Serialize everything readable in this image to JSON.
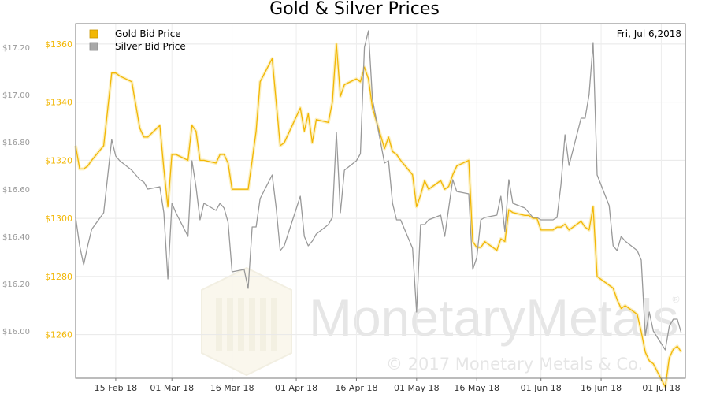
{
  "chart_data": {
    "type": "line",
    "title": "Gold & Silver Prices",
    "date_label": "Fri, Jul 6,2018",
    "x_range": [
      "2018-02-05",
      "2018-07-07"
    ],
    "x_tick_labels": [
      {
        "date": "2018-02-15",
        "label": "15 Feb 18"
      },
      {
        "date": "2018-03-01",
        "label": "01 Mar 18"
      },
      {
        "date": "2018-03-16",
        "label": "16 Mar 18"
      },
      {
        "date": "2018-04-01",
        "label": "01 Apr 18"
      },
      {
        "date": "2018-04-16",
        "label": "16 Apr 18"
      },
      {
        "date": "2018-05-01",
        "label": "01 May 18"
      },
      {
        "date": "2018-05-16",
        "label": "16 May 18"
      },
      {
        "date": "2018-06-01",
        "label": "01 Jun 18"
      },
      {
        "date": "2018-06-16",
        "label": "16 Jun 18"
      },
      {
        "date": "2018-07-01",
        "label": "01 Jul 18"
      }
    ],
    "gold_axis": {
      "range": [
        1245,
        1367
      ],
      "ticks": [
        1260,
        1280,
        1300,
        1320,
        1340,
        1360
      ],
      "tick_labels": [
        "$1260",
        "$1280",
        "$1300",
        "$1320",
        "$1340",
        "$1360"
      ],
      "color": "#f2b705"
    },
    "silver_axis": {
      "range": [
        15.8,
        17.3
      ],
      "ticks": [
        16.0,
        16.2,
        16.4,
        16.6,
        16.8,
        17.0,
        17.2
      ],
      "tick_labels": [
        "$16.00",
        "$16.20",
        "$16.40",
        "$16.60",
        "$16.80",
        "$17.00",
        "$17.20"
      ],
      "color": "#999999"
    },
    "grid": true,
    "legend_position": "top-left",
    "series": [
      {
        "name": "Gold Bid Price",
        "axis": "gold",
        "color": "#f2b705",
        "points": [
          [
            "2018-02-05",
            1325
          ],
          [
            "2018-02-06",
            1317
          ],
          [
            "2018-02-07",
            1317
          ],
          [
            "2018-02-08",
            1318
          ],
          [
            "2018-02-09",
            1320
          ],
          [
            "2018-02-12",
            1325
          ],
          [
            "2018-02-14",
            1350
          ],
          [
            "2018-02-15",
            1350
          ],
          [
            "2018-02-16",
            1349
          ],
          [
            "2018-02-19",
            1347
          ],
          [
            "2018-02-21",
            1331
          ],
          [
            "2018-02-22",
            1328
          ],
          [
            "2018-02-23",
            1328
          ],
          [
            "2018-02-26",
            1332
          ],
          [
            "2018-02-27",
            1317
          ],
          [
            "2018-02-28",
            1304
          ],
          [
            "2018-03-01",
            1322
          ],
          [
            "2018-03-02",
            1322
          ],
          [
            "2018-03-05",
            1320
          ],
          [
            "2018-03-06",
            1332
          ],
          [
            "2018-03-07",
            1330
          ],
          [
            "2018-03-08",
            1320
          ],
          [
            "2018-03-09",
            1320
          ],
          [
            "2018-03-12",
            1319
          ],
          [
            "2018-03-13",
            1322
          ],
          [
            "2018-03-14",
            1322
          ],
          [
            "2018-03-15",
            1319
          ],
          [
            "2018-03-16",
            1310
          ],
          [
            "2018-03-19",
            1310
          ],
          [
            "2018-03-20",
            1310
          ],
          [
            "2018-03-21",
            1320
          ],
          [
            "2018-03-22",
            1330
          ],
          [
            "2018-03-23",
            1347
          ],
          [
            "2018-03-26",
            1355
          ],
          [
            "2018-03-27",
            1340
          ],
          [
            "2018-03-28",
            1325
          ],
          [
            "2018-03-29",
            1326
          ],
          [
            "2018-04-02",
            1338
          ],
          [
            "2018-04-03",
            1330
          ],
          [
            "2018-04-04",
            1336
          ],
          [
            "2018-04-05",
            1326
          ],
          [
            "2018-04-06",
            1334
          ],
          [
            "2018-04-09",
            1333
          ],
          [
            "2018-04-10",
            1340
          ],
          [
            "2018-04-11",
            1360
          ],
          [
            "2018-04-12",
            1342
          ],
          [
            "2018-04-13",
            1346
          ],
          [
            "2018-04-16",
            1348
          ],
          [
            "2018-04-17",
            1347
          ],
          [
            "2018-04-18",
            1352
          ],
          [
            "2018-04-19",
            1348
          ],
          [
            "2018-04-20",
            1338
          ],
          [
            "2018-04-23",
            1324
          ],
          [
            "2018-04-24",
            1328
          ],
          [
            "2018-04-25",
            1323
          ],
          [
            "2018-04-26",
            1322
          ],
          [
            "2018-04-27",
            1320
          ],
          [
            "2018-04-30",
            1315
          ],
          [
            "2018-05-01",
            1304
          ],
          [
            "2018-05-02",
            1308
          ],
          [
            "2018-05-03",
            1313
          ],
          [
            "2018-05-04",
            1310
          ],
          [
            "2018-05-07",
            1313
          ],
          [
            "2018-05-08",
            1310
          ],
          [
            "2018-05-09",
            1311
          ],
          [
            "2018-05-10",
            1315
          ],
          [
            "2018-05-11",
            1318
          ],
          [
            "2018-05-14",
            1320
          ],
          [
            "2018-05-15",
            1292
          ],
          [
            "2018-05-16",
            1290
          ],
          [
            "2018-05-17",
            1290
          ],
          [
            "2018-05-18",
            1292
          ],
          [
            "2018-05-21",
            1289
          ],
          [
            "2018-05-22",
            1293
          ],
          [
            "2018-05-23",
            1292
          ],
          [
            "2018-05-24",
            1303
          ],
          [
            "2018-05-25",
            1302
          ],
          [
            "2018-05-28",
            1301
          ],
          [
            "2018-05-29",
            1301
          ],
          [
            "2018-05-30",
            1300
          ],
          [
            "2018-05-31",
            1300
          ],
          [
            "2018-06-01",
            1296
          ],
          [
            "2018-06-04",
            1296
          ],
          [
            "2018-06-05",
            1297
          ],
          [
            "2018-06-06",
            1297
          ],
          [
            "2018-06-07",
            1298
          ],
          [
            "2018-06-08",
            1296
          ],
          [
            "2018-06-11",
            1299
          ],
          [
            "2018-06-12",
            1297
          ],
          [
            "2018-06-13",
            1296
          ],
          [
            "2018-06-14",
            1304
          ],
          [
            "2018-06-15",
            1280
          ],
          [
            "2018-06-18",
            1277
          ],
          [
            "2018-06-19",
            1276
          ],
          [
            "2018-06-20",
            1272
          ],
          [
            "2018-06-21",
            1269
          ],
          [
            "2018-06-22",
            1270
          ],
          [
            "2018-06-25",
            1267
          ],
          [
            "2018-06-26",
            1261
          ],
          [
            "2018-06-27",
            1254
          ],
          [
            "2018-06-28",
            1251
          ],
          [
            "2018-06-29",
            1250
          ],
          [
            "2018-07-02",
            1242
          ],
          [
            "2018-07-03",
            1252
          ],
          [
            "2018-07-04",
            1255
          ],
          [
            "2018-07-05",
            1256
          ],
          [
            "2018-07-06",
            1254
          ]
        ]
      },
      {
        "name": "Silver Bid Price",
        "axis": "silver",
        "color": "#999999",
        "points": [
          [
            "2018-02-05",
            16.48
          ],
          [
            "2018-02-06",
            16.36
          ],
          [
            "2018-02-07",
            16.28
          ],
          [
            "2018-02-08",
            16.36
          ],
          [
            "2018-02-09",
            16.43
          ],
          [
            "2018-02-12",
            16.5
          ],
          [
            "2018-02-14",
            16.81
          ],
          [
            "2018-02-15",
            16.74
          ],
          [
            "2018-02-16",
            16.72
          ],
          [
            "2018-02-19",
            16.68
          ],
          [
            "2018-02-21",
            16.64
          ],
          [
            "2018-02-22",
            16.63
          ],
          [
            "2018-02-23",
            16.6
          ],
          [
            "2018-02-26",
            16.61
          ],
          [
            "2018-02-27",
            16.5
          ],
          [
            "2018-02-28",
            16.22
          ],
          [
            "2018-03-01",
            16.54
          ],
          [
            "2018-03-02",
            16.5
          ],
          [
            "2018-03-05",
            16.4
          ],
          [
            "2018-03-06",
            16.72
          ],
          [
            "2018-03-07",
            16.61
          ],
          [
            "2018-03-08",
            16.47
          ],
          [
            "2018-03-09",
            16.54
          ],
          [
            "2018-03-12",
            16.51
          ],
          [
            "2018-03-13",
            16.54
          ],
          [
            "2018-03-14",
            16.52
          ],
          [
            "2018-03-15",
            16.46
          ],
          [
            "2018-03-16",
            16.25
          ],
          [
            "2018-03-19",
            16.26
          ],
          [
            "2018-03-20",
            16.18
          ],
          [
            "2018-03-21",
            16.44
          ],
          [
            "2018-03-22",
            16.44
          ],
          [
            "2018-03-23",
            16.56
          ],
          [
            "2018-03-26",
            16.66
          ],
          [
            "2018-03-27",
            16.52
          ],
          [
            "2018-03-28",
            16.34
          ],
          [
            "2018-03-29",
            16.36
          ],
          [
            "2018-04-02",
            16.57
          ],
          [
            "2018-04-03",
            16.4
          ],
          [
            "2018-04-04",
            16.36
          ],
          [
            "2018-04-05",
            16.38
          ],
          [
            "2018-04-06",
            16.41
          ],
          [
            "2018-04-09",
            16.45
          ],
          [
            "2018-04-10",
            16.48
          ],
          [
            "2018-04-11",
            16.84
          ],
          [
            "2018-04-12",
            16.5
          ],
          [
            "2018-04-13",
            16.68
          ],
          [
            "2018-04-16",
            16.72
          ],
          [
            "2018-04-17",
            16.75
          ],
          [
            "2018-04-18",
            17.2
          ],
          [
            "2018-04-19",
            17.27
          ],
          [
            "2018-04-20",
            16.98
          ],
          [
            "2018-04-23",
            16.71
          ],
          [
            "2018-04-24",
            16.72
          ],
          [
            "2018-04-25",
            16.54
          ],
          [
            "2018-04-26",
            16.47
          ],
          [
            "2018-04-27",
            16.47
          ],
          [
            "2018-04-30",
            16.35
          ],
          [
            "2018-05-01",
            16.08
          ],
          [
            "2018-05-02",
            16.45
          ],
          [
            "2018-05-03",
            16.45
          ],
          [
            "2018-05-04",
            16.47
          ],
          [
            "2018-05-07",
            16.49
          ],
          [
            "2018-05-08",
            16.4
          ],
          [
            "2018-05-09",
            16.52
          ],
          [
            "2018-05-10",
            16.64
          ],
          [
            "2018-05-11",
            16.59
          ],
          [
            "2018-05-14",
            16.58
          ],
          [
            "2018-05-15",
            16.26
          ],
          [
            "2018-05-16",
            16.31
          ],
          [
            "2018-05-17",
            16.47
          ],
          [
            "2018-05-18",
            16.48
          ],
          [
            "2018-05-21",
            16.49
          ],
          [
            "2018-05-22",
            16.57
          ],
          [
            "2018-05-23",
            16.42
          ],
          [
            "2018-05-24",
            16.64
          ],
          [
            "2018-05-25",
            16.54
          ],
          [
            "2018-05-28",
            16.52
          ],
          [
            "2018-05-29",
            16.5
          ],
          [
            "2018-05-30",
            16.48
          ],
          [
            "2018-05-31",
            16.48
          ],
          [
            "2018-06-01",
            16.47
          ],
          [
            "2018-06-04",
            16.47
          ],
          [
            "2018-06-05",
            16.48
          ],
          [
            "2018-06-06",
            16.62
          ],
          [
            "2018-06-07",
            16.83
          ],
          [
            "2018-06-08",
            16.7
          ],
          [
            "2018-06-11",
            16.9
          ],
          [
            "2018-06-12",
            16.9
          ],
          [
            "2018-06-13",
            17.0
          ],
          [
            "2018-06-14",
            17.22
          ],
          [
            "2018-06-15",
            16.66
          ],
          [
            "2018-06-18",
            16.53
          ],
          [
            "2018-06-19",
            16.36
          ],
          [
            "2018-06-20",
            16.34
          ],
          [
            "2018-06-21",
            16.4
          ],
          [
            "2018-06-22",
            16.38
          ],
          [
            "2018-06-25",
            16.34
          ],
          [
            "2018-06-26",
            16.3
          ],
          [
            "2018-06-27",
            15.98
          ],
          [
            "2018-06-28",
            16.08
          ],
          [
            "2018-06-29",
            16.0
          ],
          [
            "2018-07-02",
            15.92
          ],
          [
            "2018-07-03",
            16.02
          ],
          [
            "2018-07-04",
            16.05
          ],
          [
            "2018-07-05",
            16.05
          ],
          [
            "2018-07-06",
            15.99
          ]
        ]
      }
    ]
  },
  "watermark": {
    "brand": "MonetaryMetals",
    "brand_part1": "Monetary",
    "brand_part2": "Metals",
    "registered": "®",
    "copyright": "© 2017 Monetary Metals & Co."
  }
}
